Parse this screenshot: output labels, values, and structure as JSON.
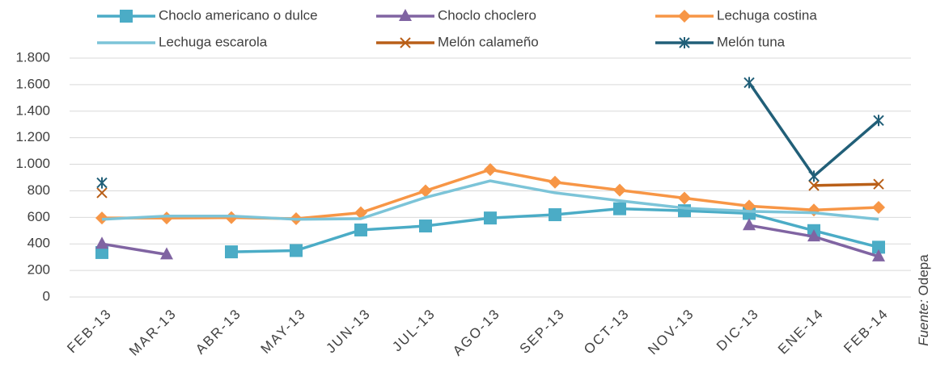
{
  "chart_data": {
    "type": "line",
    "categories": [
      "FEB-13",
      "MAR-13",
      "ABR-13",
      "MAY-13",
      "JUN-13",
      "JUL-13",
      "AGO-13",
      "SEP-13",
      "OCT-13",
      "NOV-13",
      "DIC-13",
      "ENE-14",
      "FEB-14"
    ],
    "series": [
      {
        "name": "Choclo americano o dulce",
        "color": "#4bacc6",
        "marker": "square",
        "values": [
          335,
          null,
          340,
          350,
          505,
          535,
          595,
          620,
          665,
          650,
          630,
          500,
          375
        ]
      },
      {
        "name": "Choclo choclero",
        "color": "#8064a2",
        "marker": "triangle",
        "values": [
          400,
          320,
          null,
          null,
          null,
          null,
          null,
          null,
          null,
          null,
          540,
          455,
          305
        ]
      },
      {
        "name": "Lechuga costina",
        "color": "#f79646",
        "marker": "diamond",
        "values": [
          595,
          595,
          598,
          590,
          635,
          800,
          960,
          865,
          805,
          745,
          685,
          655,
          675
        ]
      },
      {
        "name": "Lechuga escarola",
        "color": "#7cc4d8",
        "values": [
          585,
          610,
          610,
          585,
          590,
          750,
          875,
          785,
          725,
          670,
          645,
          635,
          585
        ]
      },
      {
        "name": "Melón calameño",
        "color": "#b95f18",
        "marker": "x",
        "values": [
          785,
          null,
          null,
          null,
          null,
          null,
          null,
          null,
          null,
          null,
          null,
          840,
          850
        ]
      },
      {
        "name": "Melón tuna",
        "color": "#215f78",
        "marker": "star",
        "values": [
          860,
          null,
          null,
          null,
          null,
          null,
          null,
          null,
          null,
          null,
          1615,
          910,
          1330
        ]
      }
    ],
    "ylim": [
      0,
      1800
    ],
    "yticks": [
      0,
      200,
      400,
      600,
      800,
      {
        "value": 1000,
        "label": "1.000"
      },
      {
        "value": 1200,
        "label": "1.200"
      },
      {
        "value": 1400,
        "label": "1.400"
      },
      {
        "value": 1600,
        "label": "1.600"
      },
      {
        "value": 1800,
        "label": "1.800"
      }
    ],
    "grid": true,
    "source_label": "Fuente:",
    "source": "Odepa"
  }
}
